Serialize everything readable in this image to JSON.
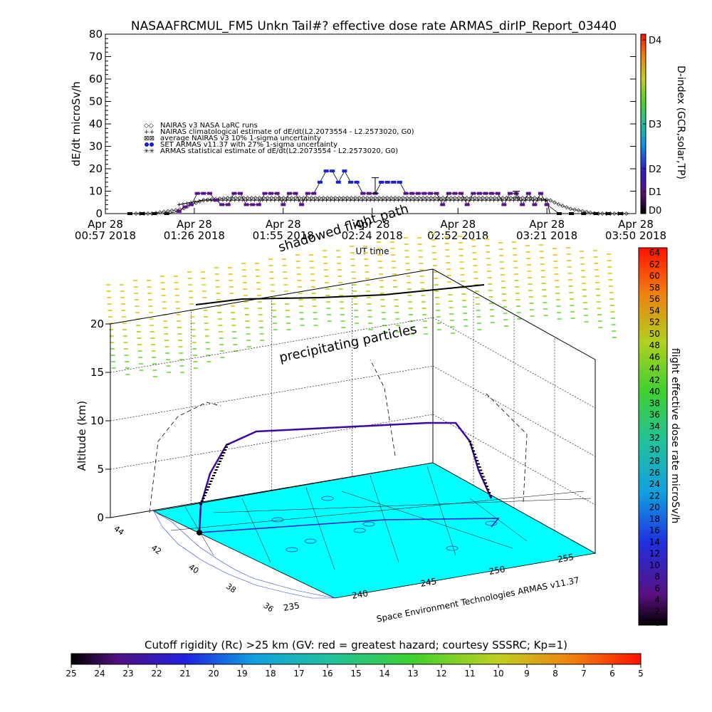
{
  "chart_data": [
    {
      "type": "line",
      "title": "NASAAFRCMUL_FM5 Unkn Tail#? effective dose rate ARMAS_dirIP_Report_03440",
      "xlabel": "UT time",
      "ylabel": "dE/dt microSv/h",
      "ylim": [
        0,
        80
      ],
      "yticks": [
        0,
        10,
        20,
        30,
        40,
        50,
        60,
        70,
        80
      ],
      "xlim": [
        0,
        173
      ],
      "x_unit": "minutes after 00:57 UT, Apr 28 2018",
      "xticks": [
        {
          "x": 0,
          "line1": "Apr 28",
          "line2": "00:57  2018"
        },
        {
          "x": 29,
          "line1": "Apr 28",
          "line2": "01:26  2018"
        },
        {
          "x": 58,
          "line1": "Apr 28",
          "line2": "01:55  2018"
        },
        {
          "x": 87,
          "line1": "Apr 28",
          "line2": "02:24  2018"
        },
        {
          "x": 115,
          "line1": "Apr 28",
          "line2": "02:52  2018"
        },
        {
          "x": 144,
          "line1": "Apr 28",
          "line2": "03:21  2018"
        },
        {
          "x": 173,
          "line1": "Apr 28",
          "line2": "03:50  2018"
        }
      ],
      "overlay_text": "shadowed flight path",
      "legend_placement": "center-left",
      "legend": [
        "NAIRAS v3 NASA LaRC runs",
        "NAIRAS climatological estimate of dE/dt(L2.2073554 - L2.2573020, G0)",
        "average NAIRAS v3 10% 1-sigma uncertainty",
        "SET ARMAS v11.37 with 27% 1-sigma uncertainty",
        "ARMAS statistical estimate of dE/dt(L2.2073554 - L2.2573020, G0)"
      ],
      "series": [
        {
          "name": "NAIRAS v3 NASA LaRC runs",
          "color": "#000000",
          "x": [
            10,
            15,
            20,
            25,
            28,
            32,
            40,
            50,
            60,
            70,
            80,
            90,
            100,
            110,
            120,
            130,
            140,
            145,
            148,
            152,
            156,
            160,
            165,
            170
          ],
          "y": [
            0,
            0,
            1,
            2,
            4,
            6,
            7,
            7,
            7,
            7,
            7,
            7,
            7,
            7,
            7,
            7,
            7,
            6,
            4,
            2,
            1,
            0,
            0,
            0
          ]
        },
        {
          "name": "SET ARMAS v11.37 with 27% 1-sigma uncertainty",
          "color": "#1a1acc",
          "x": [
            8,
            12,
            16,
            20,
            24,
            26,
            28,
            30,
            32,
            34,
            36,
            38,
            40,
            42,
            44,
            46,
            48,
            50,
            52,
            54,
            56,
            58,
            60,
            62,
            64,
            66,
            68,
            70,
            72,
            74,
            76,
            78,
            80,
            82,
            84,
            86,
            88,
            90,
            92,
            94,
            96,
            98,
            100,
            102,
            104,
            106,
            108,
            110,
            112,
            114,
            116,
            118,
            120,
            122,
            124,
            126,
            128,
            130,
            132,
            134,
            136,
            138,
            140,
            142,
            144,
            148,
            152,
            156,
            160,
            164,
            168
          ],
          "y": [
            0,
            0,
            0,
            0,
            1,
            3,
            4,
            9,
            9,
            9,
            6,
            4,
            4,
            9,
            9,
            4,
            4,
            4,
            9,
            9,
            9,
            4,
            9,
            9,
            4,
            9,
            9,
            14,
            19,
            19,
            14,
            19,
            14,
            14,
            9,
            9,
            9,
            14,
            14,
            14,
            14,
            9,
            9,
            9,
            9,
            9,
            9,
            4,
            9,
            9,
            9,
            4,
            9,
            9,
            9,
            9,
            9,
            4,
            9,
            9,
            4,
            9,
            4,
            9,
            4,
            0,
            0,
            0,
            0,
            0,
            0
          ]
        },
        {
          "name": "ARMAS statistical estimate of dE/dt(L2.2073554 - L2.2573020, G0)",
          "color": "#000000",
          "x": [
            24,
            28,
            32,
            40,
            60,
            80,
            100,
            120,
            140,
            144,
            145
          ],
          "y": [
            4,
            5,
            6,
            6,
            6,
            6,
            6,
            6,
            6,
            6,
            0
          ]
        }
      ],
      "error_bars": [
        {
          "x": 88,
          "low": 9,
          "high": 16
        },
        {
          "x": 134,
          "low": 7,
          "high": 10
        }
      ],
      "d_index_colorbar": {
        "label": "D-index (GCR,solar,TP)",
        "ticks": [
          "D0",
          "D1",
          "D2",
          "D3",
          "D4"
        ]
      }
    },
    {
      "type": "scatter",
      "subtype": "3d-perspective",
      "zlabel": "Altitude (km)",
      "zlim": [
        0,
        20
      ],
      "zticks": [
        0,
        5,
        10,
        15,
        20
      ],
      "xticks": [
        235,
        240,
        245,
        250,
        255
      ],
      "yticks": [
        36,
        38,
        40,
        42,
        44
      ],
      "overlay_text": "precipitating particles",
      "credit": "Space Environment Technologies ARMAS v11.37",
      "flight_track": {
        "lon": [
          237.3,
          239,
          243,
          247,
          251,
          253,
          254
        ],
        "lat": [
          43.8,
          44.1,
          43.7,
          43.5,
          43.2,
          43.0,
          42.9
        ],
        "alt_km": [
          0,
          4,
          9,
          9,
          9.5,
          9.5,
          3
        ],
        "color": "#3a0aa0"
      },
      "dose_colorbar": {
        "label": "flight effective dose rate microSv/h",
        "min": 0,
        "max": 64,
        "step": 2
      }
    }
  ],
  "cutoff_colorbar": {
    "title": "Cutoff rigidity (Rc) >25 km (GV: red = greatest hazard; courtesy SSSRC; Kp=1)",
    "labels": [
      "25",
      "24",
      "23",
      "22",
      "21",
      "20",
      "19",
      "18",
      "17",
      "16",
      "15",
      "14",
      "13",
      "12",
      "11",
      "10",
      "9",
      "8",
      "7",
      "6",
      "5"
    ]
  },
  "colors": {
    "terrain": "#00ffff",
    "particles_high": "#e8d040",
    "particles_low": "#90e060",
    "armas_marker": "#1a1acc"
  }
}
